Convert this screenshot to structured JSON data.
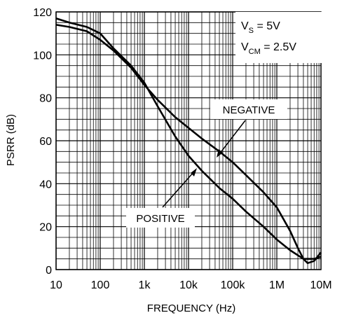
{
  "chart_data": {
    "type": "line",
    "xlabel": "FREQUENCY (Hz)",
    "ylabel": "PSRR (dB)",
    "x_scale": "log",
    "xlim": [
      10,
      10000000
    ],
    "ylim": [
      0,
      120
    ],
    "grid": true,
    "x_tick_labels": [
      {
        "value": 10,
        "label": "10"
      },
      {
        "value": 100,
        "label": "100"
      },
      {
        "value": 1000,
        "label": "1k"
      },
      {
        "value": 10000,
        "label": "10k"
      },
      {
        "value": 100000,
        "label": "100k"
      },
      {
        "value": 1000000,
        "label": "1M"
      },
      {
        "value": 10000000,
        "label": "10M"
      }
    ],
    "y_tick_labels": [
      {
        "value": 0,
        "label": "0"
      },
      {
        "value": 20,
        "label": "20"
      },
      {
        "value": 40,
        "label": "40"
      },
      {
        "value": 60,
        "label": "60"
      },
      {
        "value": 80,
        "label": "80"
      },
      {
        "value": 100,
        "label": "100"
      },
      {
        "value": 120,
        "label": "120"
      }
    ],
    "conditions": {
      "vs_main": "V",
      "vs_sub": "S",
      "vs_rest": " = 5V",
      "vcm_main": "V",
      "vcm_sub": "CM",
      "vcm_rest": " = 2.5V"
    },
    "series": [
      {
        "name": "NEGATIVE",
        "x": [
          10,
          20,
          50,
          100,
          200,
          500,
          1000,
          2000,
          5000,
          10000,
          20000,
          50000,
          100000,
          200000,
          500000,
          1000000,
          2000000,
          3000000,
          4000000,
          5000000,
          7000000,
          10000000
        ],
        "y": [
          114,
          113,
          111,
          107,
          102,
          94,
          86,
          79,
          71,
          66,
          61,
          55,
          50,
          44,
          36,
          29,
          18,
          10,
          5,
          3,
          4,
          8
        ]
      },
      {
        "name": "POSITIVE",
        "x": [
          10,
          20,
          50,
          100,
          200,
          500,
          1000,
          2000,
          5000,
          10000,
          20000,
          50000,
          100000,
          200000,
          500000,
          1000000,
          2000000,
          4000000,
          7000000,
          10000000
        ],
        "y": [
          117,
          115,
          113,
          110,
          103,
          95,
          87,
          76,
          62,
          53,
          46,
          38,
          33,
          27,
          20,
          14,
          9,
          5,
          5,
          6
        ]
      }
    ],
    "annotations": [
      {
        "text": "NEGATIVE",
        "target_x": 50000,
        "target_y": 53
      },
      {
        "text": "POSITIVE",
        "target_x": 15000,
        "target_y": 48
      }
    ]
  }
}
